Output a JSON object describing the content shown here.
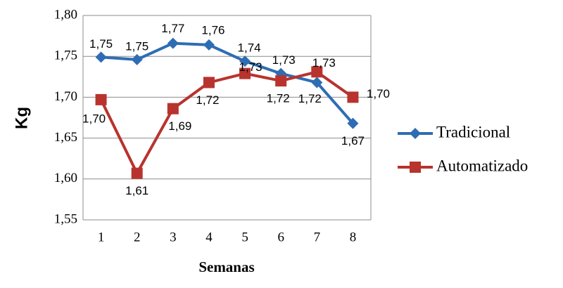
{
  "chart_data": {
    "type": "line",
    "x_label": "Semanas",
    "y_label": "Kg",
    "categories": [
      "1",
      "2",
      "3",
      "4",
      "5",
      "6",
      "7",
      "8"
    ],
    "series": [
      {
        "name": "Tradicional",
        "color": "#2e6db4",
        "marker": "diamond",
        "values": [
          1.749,
          1.746,
          1.766,
          1.764,
          1.744,
          1.729,
          1.718,
          1.668
        ],
        "value_labels": [
          "1,75",
          "1,75",
          "1,77",
          "1,76",
          "1,74",
          "1,73",
          "1,72",
          "1,67"
        ]
      },
      {
        "name": "Automatizado",
        "color": "#b8332e",
        "marker": "square",
        "values": [
          1.697,
          1.607,
          1.686,
          1.718,
          1.729,
          1.72,
          1.731,
          1.7
        ],
        "value_labels": [
          "1,70",
          "1,61",
          "1,69",
          "1,72",
          "1,73",
          "1,72",
          "1,73",
          "1,70"
        ]
      }
    ],
    "ylim": [
      1.55,
      1.8
    ],
    "yticks": [
      {
        "value": 1.55,
        "label": "1,55"
      },
      {
        "value": 1.6,
        "label": "1,60"
      },
      {
        "value": 1.65,
        "label": "1,65"
      },
      {
        "value": 1.7,
        "label": "1,70"
      },
      {
        "value": 1.75,
        "label": "1,75"
      },
      {
        "value": 1.8,
        "label": "1,80"
      }
    ],
    "grid": true,
    "legend": "right"
  }
}
